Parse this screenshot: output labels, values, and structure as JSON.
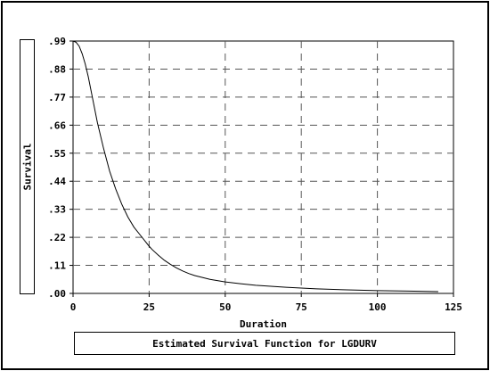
{
  "chart_data": {
    "type": "line",
    "title": "",
    "xlabel": "Duration",
    "ylabel": "Survival",
    "caption": "Estimated Survival Function for LGDURV",
    "xlim": [
      0,
      125
    ],
    "ylim": [
      0,
      0.99
    ],
    "x_ticks": [
      0,
      25,
      50,
      75,
      100,
      125
    ],
    "x_tick_labels": [
      "0",
      "25",
      "50",
      "75",
      "100",
      "125"
    ],
    "y_ticks": [
      0,
      0.11,
      0.22,
      0.33,
      0.44,
      0.55,
      0.66,
      0.77,
      0.88,
      0.99
    ],
    "y_tick_labels": [
      ".00",
      ".11",
      ".22",
      ".33",
      ".44",
      ".55",
      ".66",
      ".77",
      ".88",
      ".99"
    ],
    "grid": true,
    "series": [
      {
        "x": [
          0,
          1,
          2,
          3,
          4,
          5,
          6,
          7,
          8,
          10,
          12,
          14,
          16,
          18,
          20,
          22,
          24,
          25,
          26,
          28,
          30,
          32,
          34,
          36,
          38,
          40,
          45,
          50,
          55,
          60,
          70,
          80,
          90,
          100,
          110,
          120
        ],
        "y": [
          0.99,
          0.985,
          0.97,
          0.94,
          0.9,
          0.85,
          0.79,
          0.73,
          0.67,
          0.57,
          0.48,
          0.41,
          0.35,
          0.3,
          0.26,
          0.23,
          0.2,
          0.185,
          0.172,
          0.15,
          0.13,
          0.114,
          0.1,
          0.088,
          0.078,
          0.07,
          0.055,
          0.045,
          0.038,
          0.032,
          0.024,
          0.018,
          0.014,
          0.011,
          0.009,
          0.007
        ]
      }
    ]
  }
}
